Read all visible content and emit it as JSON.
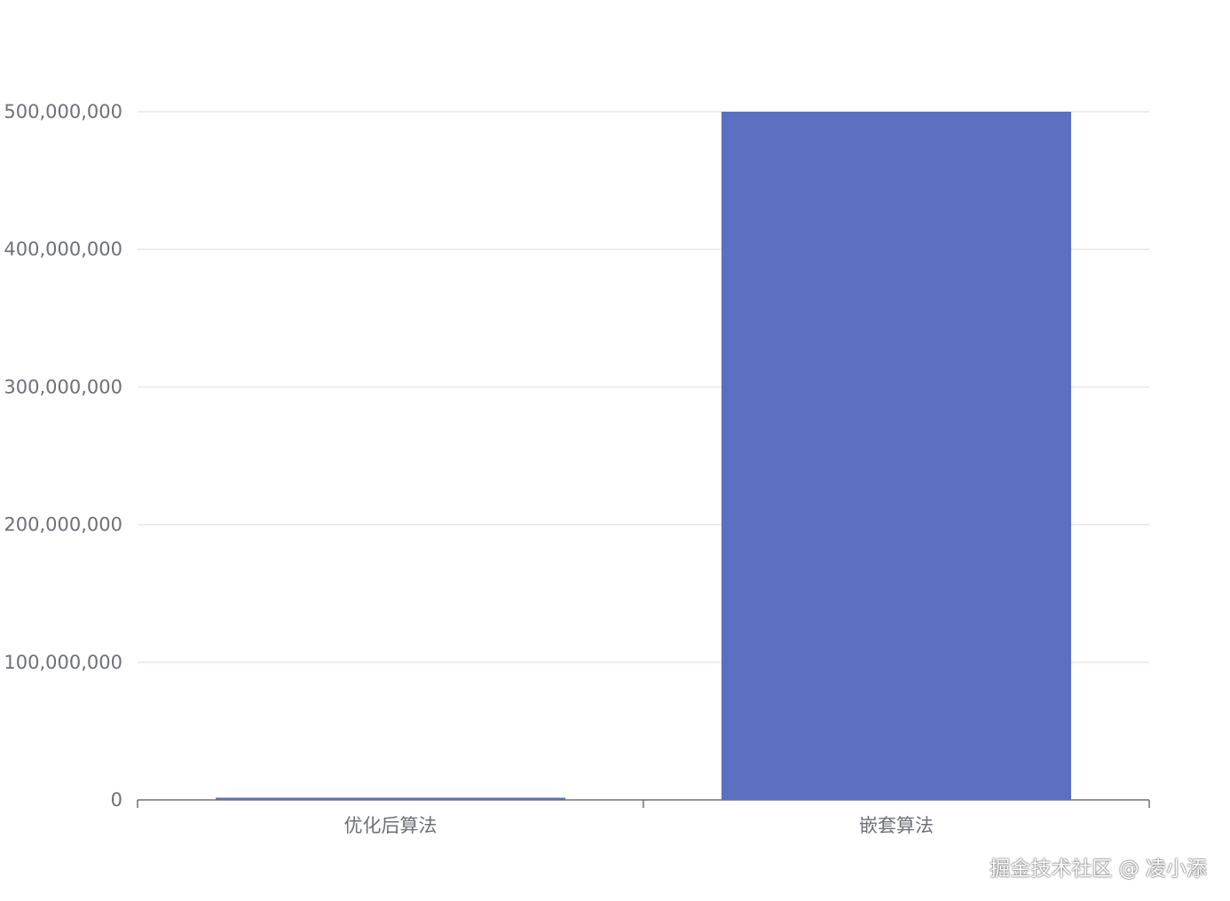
{
  "chart_data": {
    "type": "bar",
    "categories": [
      "优化后算法",
      "嵌套算法"
    ],
    "values": [
      1600000,
      500000000
    ],
    "ylim": [
      0,
      500000000
    ],
    "yticks": [
      "0",
      "100,000,000",
      "200,000,000",
      "300,000,000",
      "400,000,000",
      "500,000,000"
    ],
    "grid": true,
    "bar_color": "#5b70c0",
    "gridline_color": "#e0e6f1",
    "axis_color": "#6e7079"
  },
  "watermark": "掘金技术社区 @ 凌小添"
}
